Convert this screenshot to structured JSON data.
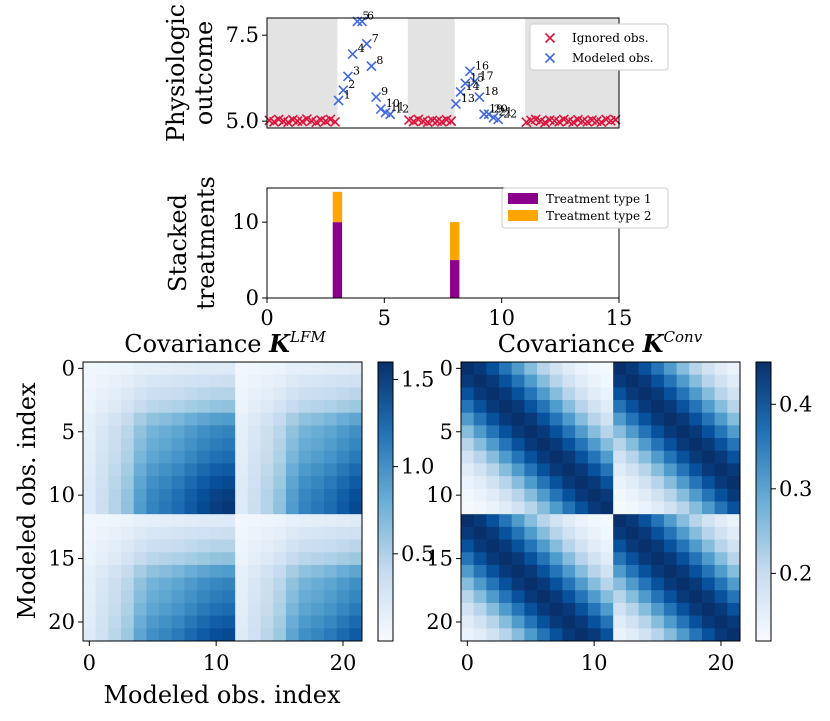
{
  "chart_data": [
    {
      "type": "scatter",
      "title": "",
      "ylabel_lines": [
        "Physiologic",
        "outcome"
      ],
      "xlim": [
        0,
        15
      ],
      "ylim": [
        4.8,
        8.0
      ],
      "yticks": [
        5.0,
        7.5
      ],
      "ytick_labels": [
        "5.0",
        "7.5"
      ],
      "shaded_x_ranges": [
        [
          0,
          3
        ],
        [
          6,
          8
        ],
        [
          11,
          15
        ]
      ],
      "series": [
        {
          "name": "Ignored obs.",
          "color": "#dc143c",
          "x": [
            0.1,
            0.3,
            0.5,
            0.7,
            0.9,
            1.1,
            1.3,
            1.5,
            1.7,
            1.9,
            2.1,
            2.3,
            2.5,
            2.7,
            2.9,
            6.05,
            6.25,
            6.45,
            6.65,
            6.85,
            7.05,
            7.25,
            7.45,
            7.65,
            7.85,
            11.05,
            11.25,
            11.45,
            11.65,
            11.85,
            12.05,
            12.25,
            12.45,
            12.65,
            12.85,
            13.05,
            13.25,
            13.45,
            13.65,
            13.85,
            14.05,
            14.25,
            14.45,
            14.65,
            14.85
          ],
          "y": [
            5.02,
            4.98,
            5.05,
            5.0,
            4.97,
            5.04,
            5.0,
            4.99,
            5.06,
            5.01,
            4.97,
            5.03,
            5.0,
            5.05,
            4.98,
            5.03,
            4.99,
            5.05,
            5.0,
            4.97,
            5.02,
            5.0,
            4.98,
            5.04,
            5.0,
            4.97,
            5.02,
            5.05,
            5.0,
            4.96,
            5.03,
            5.01,
            4.98,
            5.05,
            5.0,
            4.97,
            5.04,
            5.0,
            4.98,
            5.03,
            5.0,
            4.97,
            5.05,
            5.01,
            5.04
          ]
        },
        {
          "name": "Modeled obs.",
          "color": "#4169e1",
          "labels": [
            "1",
            "2",
            "3",
            "4",
            "5",
            "6",
            "7",
            "8",
            "9",
            "10",
            "11",
            "12",
            "13",
            "14",
            "15",
            "16",
            "17",
            "18",
            "19",
            "20",
            "21",
            "22"
          ],
          "x": [
            3.05,
            3.25,
            3.45,
            3.65,
            3.85,
            4.05,
            4.25,
            4.45,
            4.65,
            4.85,
            5.05,
            5.25,
            8.05,
            8.25,
            8.45,
            8.65,
            8.85,
            9.05,
            9.25,
            9.45,
            9.65,
            9.85
          ],
          "y": [
            5.6,
            5.9,
            6.3,
            6.95,
            7.9,
            7.9,
            7.25,
            6.6,
            5.7,
            5.35,
            5.25,
            5.2,
            5.5,
            5.85,
            6.1,
            6.45,
            6.15,
            5.7,
            5.2,
            5.2,
            5.1,
            5.05
          ]
        }
      ],
      "legend": [
        "Ignored obs.",
        "Modeled obs."
      ],
      "legend_position": "top-right"
    },
    {
      "type": "bar",
      "stacked": true,
      "ylabel_lines": [
        "Stacked",
        "treatments"
      ],
      "xlim": [
        0,
        15
      ],
      "ylim": [
        0,
        14.5
      ],
      "xticks": [
        0,
        5,
        10,
        15
      ],
      "xtick_labels": [
        "0",
        "5",
        "10",
        "15"
      ],
      "yticks": [
        0,
        10
      ],
      "ytick_labels": [
        "0",
        "10"
      ],
      "x": [
        3,
        8
      ],
      "bar_width": 0.4,
      "series": [
        {
          "name": "Treatment type 1",
          "color": "#8b008b",
          "values": [
            10,
            5
          ]
        },
        {
          "name": "Treatment type 2",
          "color": "#ffa500",
          "values": [
            4,
            5
          ]
        }
      ],
      "legend": [
        "Treatment type 1",
        "Treatment type 2"
      ],
      "legend_position": "top-right"
    },
    {
      "type": "heatmap",
      "title_prefix": "Covariance ",
      "title_symbol": "K",
      "title_superscript": "LFM",
      "xlabel": "Modeled obs. index",
      "ylabel": "Modeled obs. index",
      "size": 22,
      "xticks": [
        0,
        10,
        20
      ],
      "xtick_labels": [
        "0",
        "10",
        "20"
      ],
      "yticks": [
        0,
        5,
        10,
        15,
        20
      ],
      "ytick_labels": [
        "0",
        "5",
        "10",
        "15",
        "20"
      ],
      "colormap": "Blues",
      "vmin": 0.0,
      "vmax": 1.6,
      "colorbar_ticks": [
        0.5,
        1.0,
        1.5
      ],
      "colorbar_tick_labels": [
        "0.5",
        "1.0",
        "1.5"
      ],
      "profile": [
        0.02,
        0.06,
        0.12,
        0.22,
        0.45,
        0.62,
        0.7,
        0.8,
        0.95,
        1.1,
        1.22,
        1.28,
        0.02,
        0.06,
        0.12,
        0.22,
        0.45,
        0.62,
        0.7,
        0.8,
        0.95,
        1.1
      ]
    },
    {
      "type": "heatmap",
      "title_prefix": "Covariance ",
      "title_symbol": "K",
      "title_superscript": "Conv",
      "xlabel": "",
      "ylabel": "",
      "size": 22,
      "xticks": [
        0,
        10,
        20
      ],
      "xtick_labels": [
        "0",
        "10",
        "20"
      ],
      "yticks": [
        0,
        5,
        10,
        15,
        20
      ],
      "ytick_labels": [
        "0",
        "5",
        "10",
        "15",
        "20"
      ],
      "colormap": "Blues",
      "vmin": 0.12,
      "vmax": 0.45,
      "colorbar_ticks": [
        0.2,
        0.3,
        0.4
      ],
      "colorbar_tick_labels": [
        "0.2",
        "0.3",
        "0.4"
      ],
      "diag": 0.45,
      "min_value": 0.12,
      "decay_len": 12
    }
  ]
}
